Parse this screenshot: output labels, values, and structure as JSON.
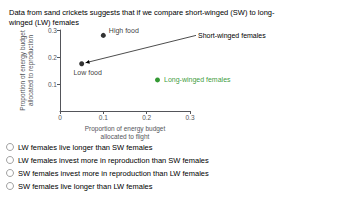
{
  "chart_data": {
    "type": "scatter",
    "title": "Data from sand crickets suggests that if we compare short-winged (SW) to long-\nwinged (LW) females",
    "xlabel": "Proportion of energy budget\nallocated to flight",
    "ylabel": "Proportion of energy budget\nallocated to reproduction",
    "xlim": [
      0,
      0.3
    ],
    "ylim": [
      0,
      0.3
    ],
    "xticks": [
      0,
      0.1,
      0.2,
      0.3
    ],
    "yticks": [
      0.1,
      0.2,
      0.3
    ],
    "grid": false,
    "series": [
      {
        "name": "Short-winged females",
        "color": "black",
        "marker": "circle",
        "x": [
          0.1,
          0.05
        ],
        "values": [
          0.28,
          0.175
        ],
        "point_labels": [
          "High food",
          "Low food"
        ]
      },
      {
        "name": "Long-winged females",
        "color": "green",
        "marker": "circle",
        "x": [
          0.225
        ],
        "values": [
          0.115
        ]
      }
    ],
    "annotations": [
      "LW females live longer than SW females",
      "LW females invest more in reproduction than SW females",
      "SW females invest more in reproduction than LW females",
      "SW females live longer than LW females"
    ]
  }
}
